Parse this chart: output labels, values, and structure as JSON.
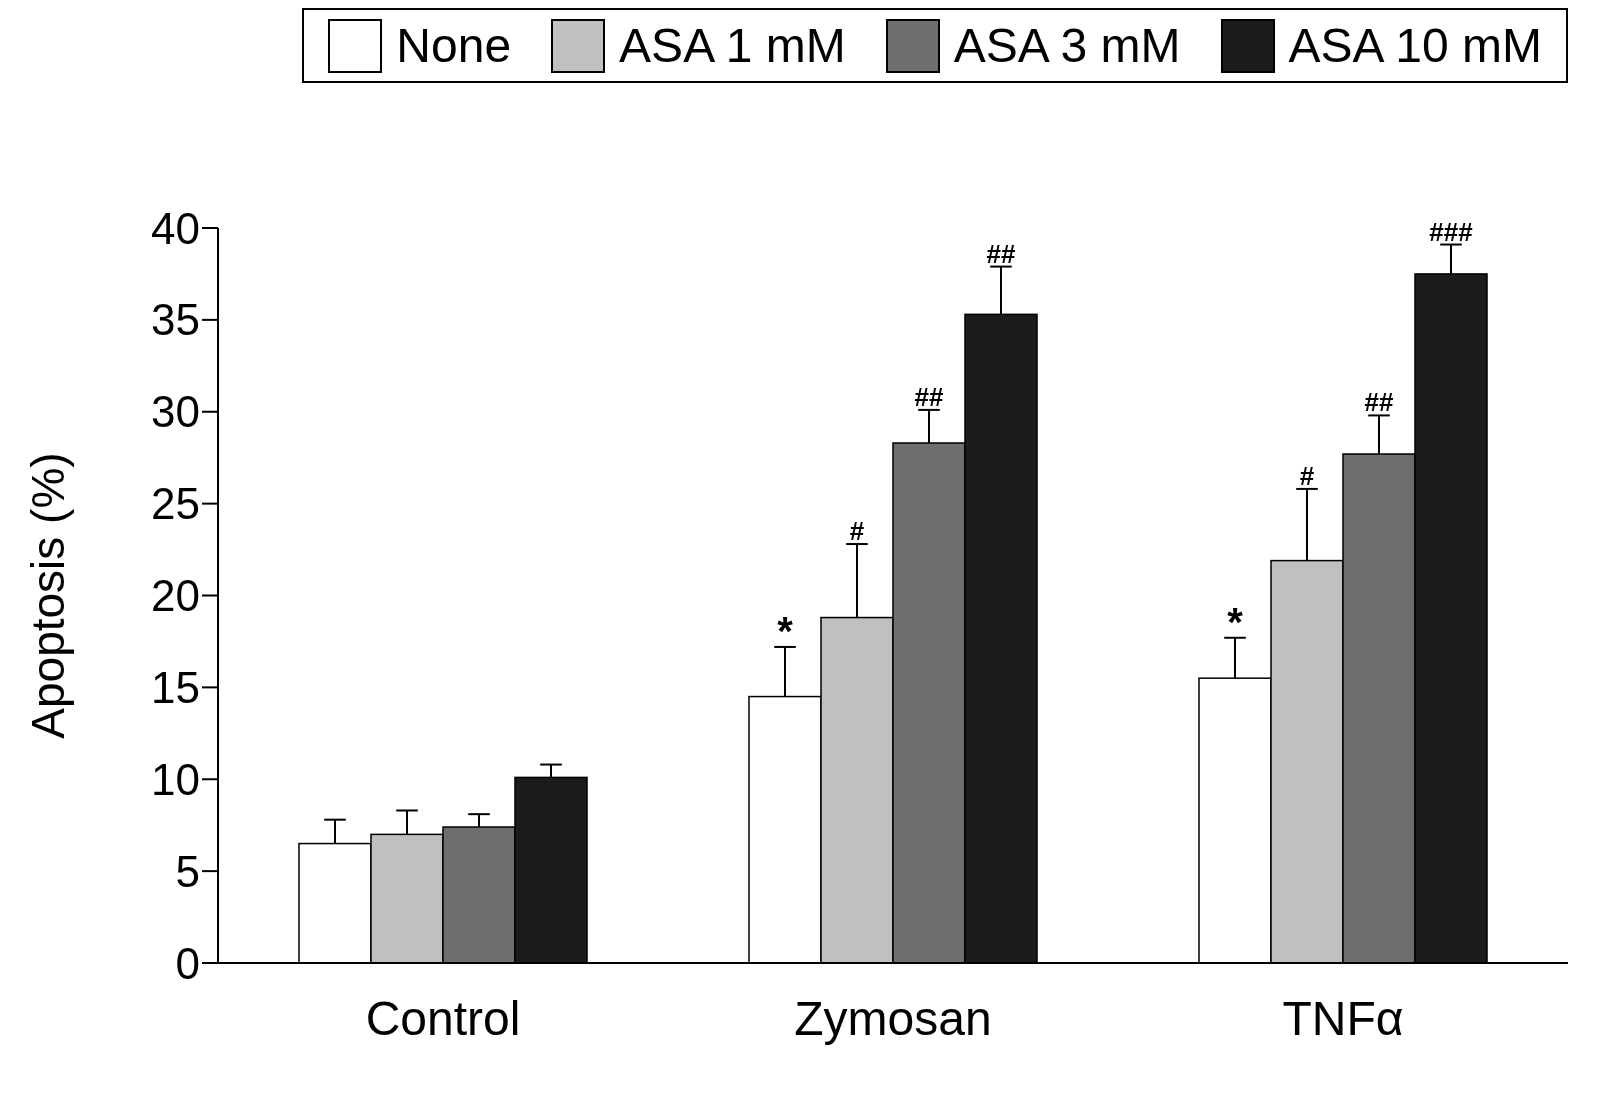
{
  "chart_data": {
    "type": "bar",
    "ylabel": "Apoptosis (%)",
    "categories": [
      "Control",
      "Zymosan",
      "TNFα"
    ],
    "series": [
      {
        "name": "None",
        "color": "#ffffff",
        "values": [
          6.5,
          14.5,
          15.5
        ],
        "errors": [
          1.3,
          2.7,
          2.2
        ]
      },
      {
        "name": "ASA 1 mM",
        "color": "#c0c0c0",
        "values": [
          7.0,
          18.8,
          21.9
        ],
        "errors": [
          1.3,
          4.0,
          3.9
        ]
      },
      {
        "name": "ASA 3 mM",
        "color": "#6e6e6e",
        "values": [
          7.4,
          28.3,
          27.7
        ],
        "errors": [
          0.7,
          1.8,
          2.1
        ]
      },
      {
        "name": "ASA 10 mM",
        "color": "#1c1c1c",
        "values": [
          10.1,
          35.3,
          37.5
        ],
        "errors": [
          0.7,
          2.6,
          1.6
        ]
      }
    ],
    "ylim": [
      0,
      40
    ],
    "yticks": [
      0,
      5,
      10,
      15,
      20,
      25,
      30,
      35,
      40
    ],
    "grid": false,
    "legend": "top",
    "annotations": [
      {
        "text": "*",
        "x": "Zymosan",
        "y": 17.2
      },
      {
        "text": "#",
        "x": "Zymosan",
        "y": 22.8
      },
      {
        "text": "##",
        "x": "Zymosan",
        "y": 28.3
      },
      "##",
      {
        "text": "*",
        "x": "TNFα",
        "y": 17.7
      },
      {
        "text": "#",
        "x": "TNFα",
        "y": 25.8
      },
      {
        "text": "##",
        "x": "TNFα",
        "y": 27.7
      },
      "###"
    ]
  }
}
